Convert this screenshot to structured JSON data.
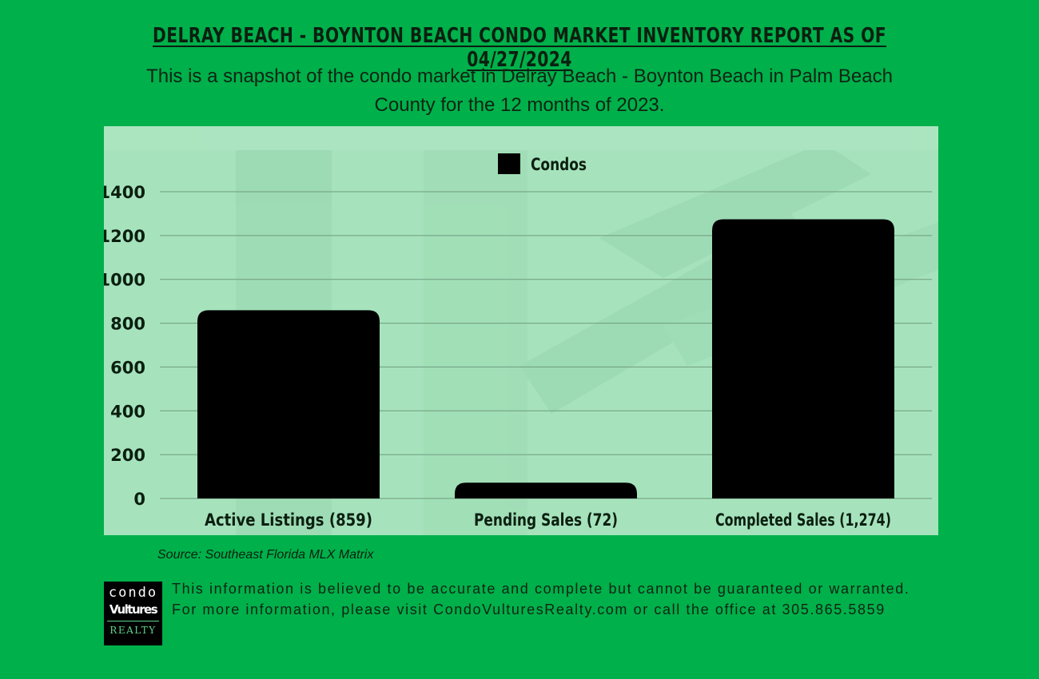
{
  "header": {
    "title": "DELRAY BEACH - BOYNTON BEACH CONDO MARKET INVENTORY REPORT AS OF 04/27/2024",
    "subtitle": "This is a snapshot of the condo market in Delray Beach - Boynton Beach in Palm Beach County for the 12 months of 2023."
  },
  "chart_data": {
    "type": "bar",
    "categories": [
      "Active Listings (859)",
      "Pending Sales (72)",
      "Completed Sales (1,274)"
    ],
    "series": [
      {
        "name": "Condos",
        "values": [
          859,
          72,
          1274
        ]
      }
    ],
    "ylim": [
      0,
      1400
    ],
    "yticks": [
      "0",
      "200",
      "400",
      "600",
      "800",
      "1000",
      "1200",
      "1400"
    ],
    "grid": true,
    "legend": "top-center",
    "bar_color": "#000000"
  },
  "footer": {
    "source": "Source: Southeast Florida MLX Matrix",
    "disclaimer": "This information is believed to be accurate and complete but cannot be guaranteed or warranted. For more information, please visit CondoVulturesRealty.com or call the office at 305.865.5859",
    "logo": {
      "line1": "condo",
      "line2": "Vultures",
      "line3": "REALTY"
    }
  },
  "colors": {
    "background": "#00b04a",
    "plot_area": "#a6e3bd",
    "text": "#0b1f10"
  }
}
